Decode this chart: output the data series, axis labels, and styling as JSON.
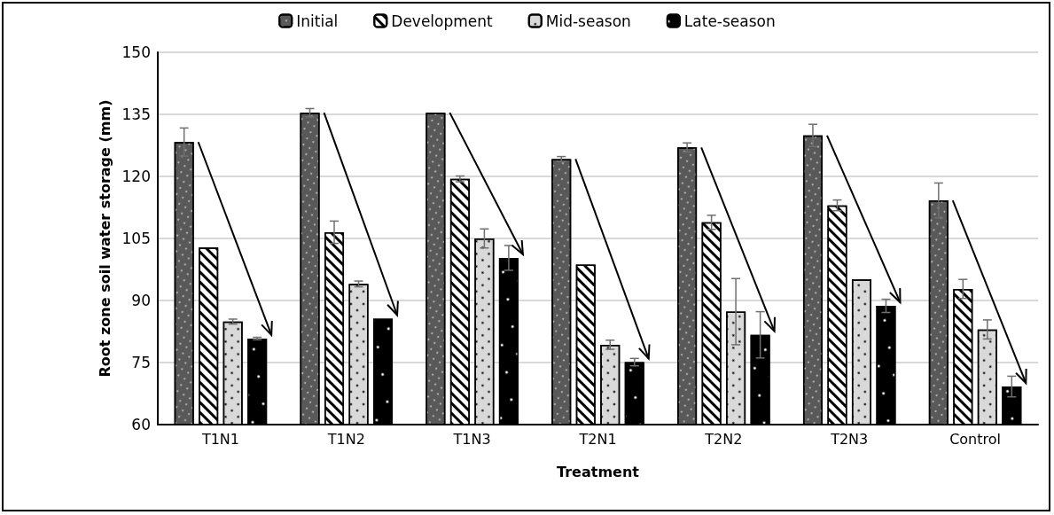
{
  "chart_data": {
    "type": "bar",
    "xlabel": "Treatment",
    "ylabel": "Root zone soil water storage (mm)",
    "categories": [
      "T1N1",
      "T1N2",
      "T1N3",
      "T2N1",
      "T2N2",
      "T2N3",
      "Control"
    ],
    "series": [
      {
        "name": "Initial",
        "color": "#595959",
        "values": [
          128.3,
          135.4,
          135.4,
          124.2,
          127,
          129.9,
          114.2
        ],
        "errors": [
          3.4,
          1,
          null,
          0.6,
          1.1,
          2.7,
          4.2
        ]
      },
      {
        "name": "Development",
        "color": "#ffffff",
        "values": [
          102.8,
          106.5,
          119.4,
          98.7,
          108.9,
          113,
          92.8
        ],
        "errors": [
          null,
          2.7,
          0.7,
          null,
          1.7,
          1.3,
          2.3
        ]
      },
      {
        "name": "Mid-season",
        "color": "#d9d9d9",
        "values": [
          84.9,
          94,
          105,
          79.3,
          87.3,
          95.1,
          83
        ],
        "errors": [
          0.6,
          0.7,
          2.3,
          1.1,
          8,
          null,
          2.3
        ]
      },
      {
        "name": "Late-season",
        "color": "#000000",
        "values": [
          80.8,
          85.6,
          100.3,
          75.1,
          81.7,
          88.7,
          69.2
        ],
        "errors": [
          0.3,
          null,
          3,
          0.9,
          5.6,
          1.6,
          2.5
        ]
      }
    ],
    "ylim": [
      60,
      150
    ],
    "yticks": [
      60,
      75,
      90,
      105,
      120,
      135,
      150
    ],
    "grid": "y",
    "legend": "top"
  }
}
